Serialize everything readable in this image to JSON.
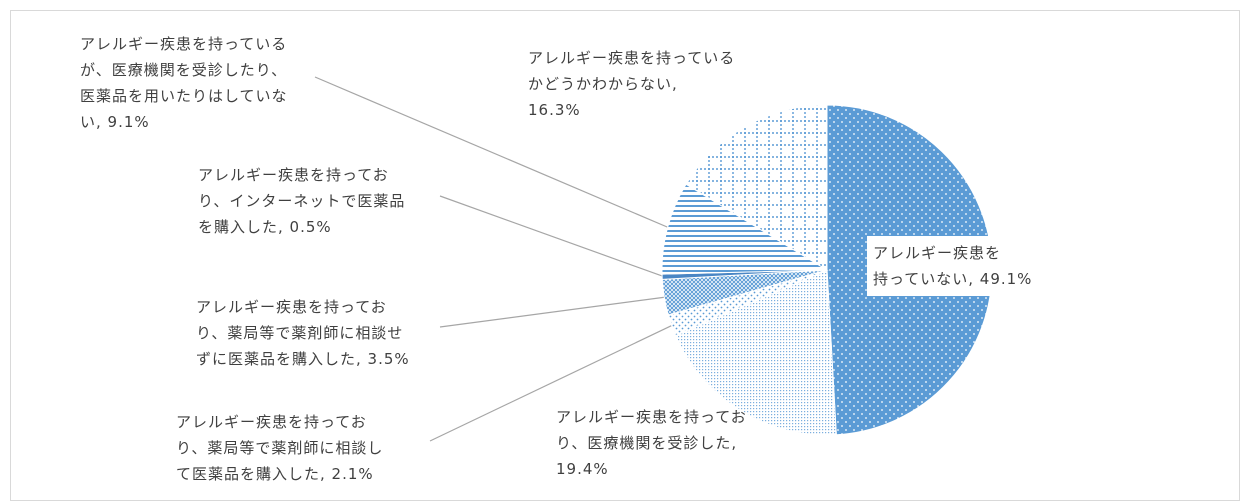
{
  "chart_data": {
    "type": "pie",
    "slices": [
      {
        "name": "アレルギー疾患を持っていない",
        "value": 49.1,
        "label_lines": [
          "アレルギー疾患を",
          "持っていない, 49.1%"
        ],
        "color": "#5b9bd5",
        "pattern": "dots-white"
      },
      {
        "name": "アレルギー疾患を持っており、医療機関を受診した",
        "value": 19.4,
        "label_lines": [
          "アレルギー疾患を持ってお",
          "り、医療機関を受診した,",
          "19.4%"
        ],
        "color": "#5b9bd5",
        "pattern": "fine-dots"
      },
      {
        "name": "アレルギー疾患を持っており、薬局等で薬剤師に相談して医薬品を購入した",
        "value": 2.1,
        "label_lines": [
          "アレルギー疾患を持ってお",
          "り、薬局等で薬剤師に相談し",
          "て医薬品を購入した, 2.1%"
        ],
        "color": "#5b9bd5",
        "pattern": "sparse-dots"
      },
      {
        "name": "アレルギー疾患を持っており、薬局等で薬剤師に相談せずに医薬品を購入した",
        "value": 3.5,
        "label_lines": [
          "アレルギー疾患を持ってお",
          "り、薬局等で薬剤師に相談せ",
          "ずに医薬品を購入した, 3.5%"
        ],
        "color": "#5b9bd5",
        "pattern": "crosshatch"
      },
      {
        "name": "アレルギー疾患を持っており、インターネットで医薬品を購入した",
        "value": 0.5,
        "label_lines": [
          "アレルギー疾患を持ってお",
          "り、インターネットで医薬品",
          "を購入した, 0.5%"
        ],
        "color": "#5b9bd5",
        "pattern": "solid"
      },
      {
        "name": "アレルギー疾患を持っているが、医療機関を受診したり、医薬品を用いたりはしていない",
        "value": 9.1,
        "label_lines": [
          "アレルギー疾患を持っている",
          "が、医療機関を受診したり、",
          "医薬品を用いたりはしていな",
          "い, 9.1%"
        ],
        "color": "#5b9bd5",
        "pattern": "horizontal-stripes"
      },
      {
        "name": "アレルギー疾患を持っているかどうかわからない",
        "value": 16.3,
        "label_lines": [
          "アレルギー疾患を持っている",
          "かどうかわからない,",
          "16.3%"
        ],
        "color": "#5b9bd5",
        "pattern": "dotted-grid"
      }
    ],
    "start_angle": "12 o'clock",
    "direction": "clockwise",
    "legend": "none",
    "leader_lines": true
  }
}
